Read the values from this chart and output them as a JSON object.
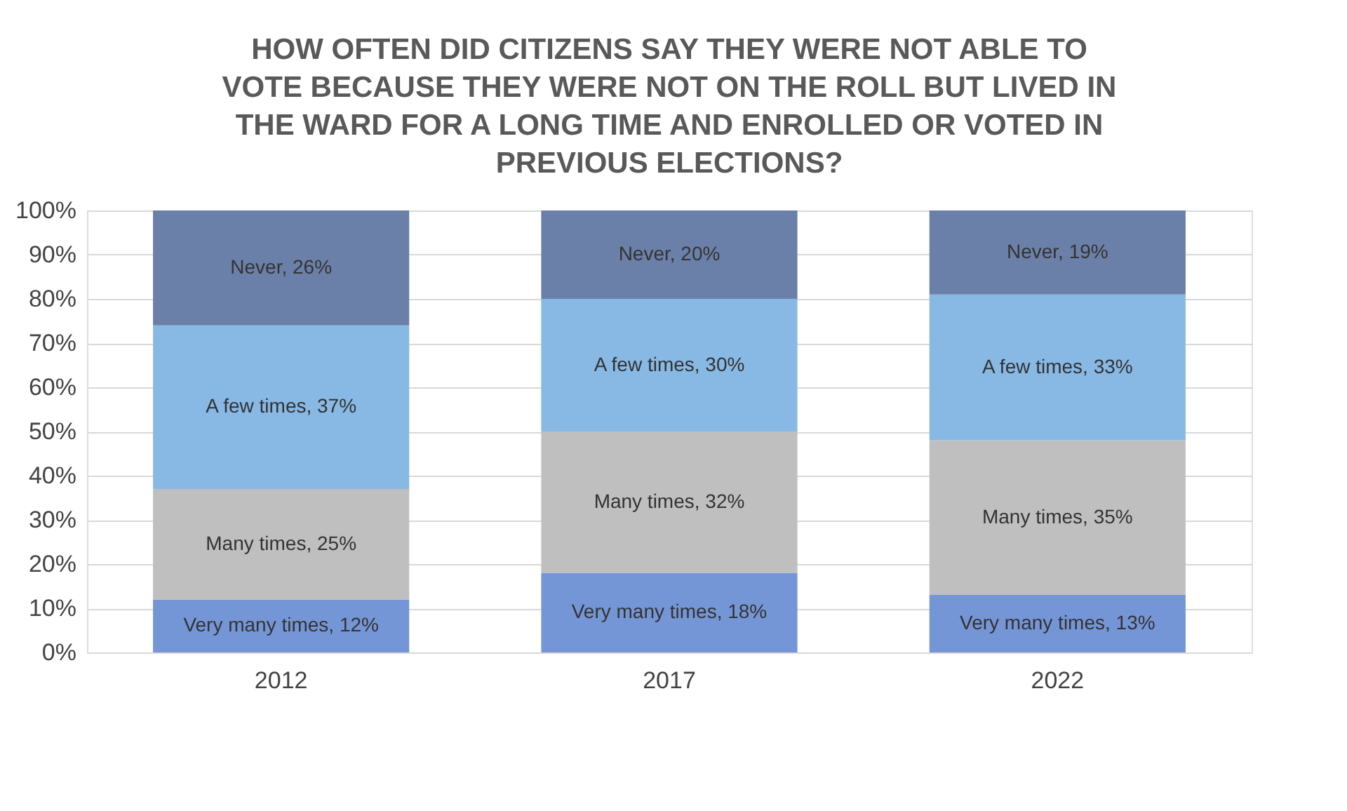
{
  "chart_data": {
    "type": "bar",
    "title": "HOW OFTEN DID CITIZENS SAY THEY WERE NOT ABLE TO VOTE BECAUSE THEY WERE NOT ON THE ROLL BUT LIVED IN THE WARD FOR A LONG TIME AND ENROLLED OR VOTED IN PREVIOUS ELECTIONS?",
    "categories": [
      "2012",
      "2017",
      "2022"
    ],
    "stacked": true,
    "series": [
      {
        "color": "#7596d6",
        "values": [
          12,
          18,
          13
        ],
        "value_labels": [
          "Very many times, 12%",
          "Very many times, 18%",
          "Very many times, 13%"
        ]
      },
      {
        "color": "#bfbfbf",
        "values": [
          25,
          32,
          35
        ],
        "value_labels": [
          "Many times, 25%",
          "Many times, 32%",
          "Many times, 35%"
        ]
      },
      {
        "color": "#88b8e4",
        "values": [
          37,
          30,
          33
        ],
        "value_labels": [
          "A few times, 37%",
          "A few times, 30%",
          "A few times, 33%"
        ]
      },
      {
        "color": "#6b80a8",
        "values": [
          26,
          20,
          19
        ],
        "value_labels": [
          "Never, 26%",
          "Never, 20%",
          "Never, 19%"
        ]
      }
    ],
    "ylim": [
      0,
      100
    ],
    "yticks": [
      {
        "value": 0,
        "label": "0%"
      },
      {
        "value": 10,
        "label": "10%"
      },
      {
        "value": 20,
        "label": "20%"
      },
      {
        "value": 30,
        "label": "30%"
      },
      {
        "value": 40,
        "label": "40%"
      },
      {
        "value": 50,
        "label": "50%"
      },
      {
        "value": 60,
        "label": "60%"
      },
      {
        "value": 70,
        "label": "70%"
      },
      {
        "value": 80,
        "label": "80%"
      },
      {
        "value": 90,
        "label": "90%"
      },
      {
        "value": 100,
        "label": "100%"
      }
    ],
    "grid": "y",
    "legend": false
  }
}
